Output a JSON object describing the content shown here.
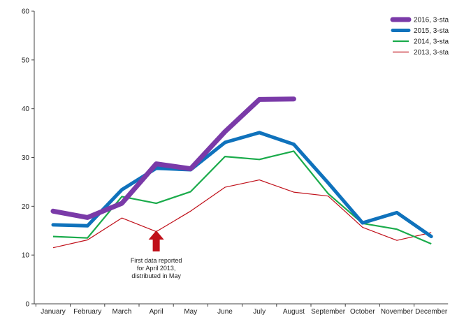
{
  "chart_data": {
    "type": "line",
    "categories": [
      "January",
      "February",
      "March",
      "April",
      "May",
      "June",
      "July",
      "August",
      "September",
      "October",
      "November",
      "December"
    ],
    "ylim": [
      0,
      60
    ],
    "yticks": [
      "0",
      "10",
      "20",
      "30",
      "40",
      "50",
      "60"
    ],
    "grid": false,
    "legend_position": "top-right",
    "series": [
      {
        "name": "2016, 3-sta",
        "color": "#7a3aa8",
        "values": [
          19.0,
          17.7,
          20.6,
          28.7,
          27.7,
          35.3,
          41.9,
          42.0,
          null,
          null,
          null,
          null
        ]
      },
      {
        "name": "2015, 3-sta",
        "color": "#0f72bc",
        "values": [
          16.2,
          16.0,
          23.4,
          27.8,
          27.5,
          33.1,
          35.1,
          32.7,
          24.8,
          16.6,
          18.7,
          13.8
        ]
      },
      {
        "name": "2014, 3-sta",
        "color": "#1aab4b",
        "values": [
          13.8,
          13.5,
          22.0,
          20.6,
          23.0,
          30.2,
          29.6,
          31.3,
          22.6,
          16.5,
          15.3,
          12.3
        ]
      },
      {
        "name": "2013, 3-sta",
        "color": "#c0101a",
        "values": [
          11.5,
          13.1,
          17.6,
          14.8,
          19.0,
          23.9,
          25.4,
          22.9,
          22.1,
          15.7,
          13.0,
          14.6
        ]
      }
    ],
    "annotations": [
      {
        "lines": [
          "First data reported",
          "for April 2013,",
          "distributed in May"
        ],
        "category": "April",
        "arrow_color": "#c0101a"
      }
    ]
  }
}
